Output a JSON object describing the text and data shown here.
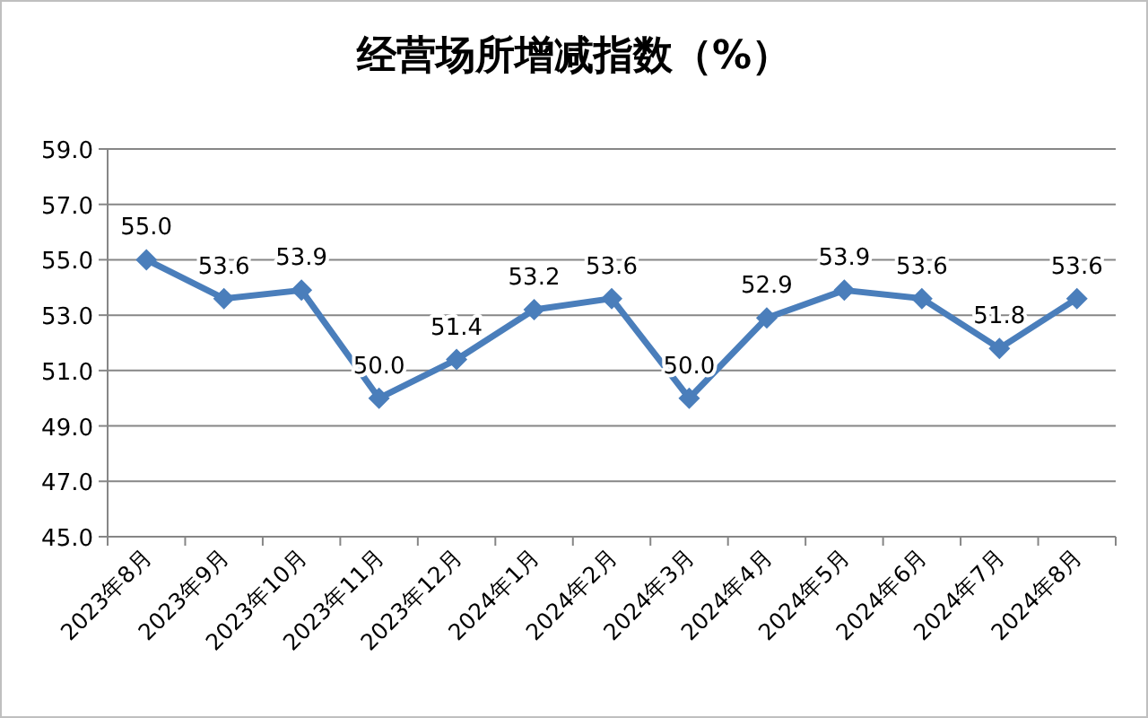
{
  "chart_data": {
    "type": "line",
    "title": "经营场所增减指数（%）",
    "categories": [
      "2023年8月",
      "2023年9月",
      "2023年10月",
      "2023年11月",
      "2023年12月",
      "2024年1月",
      "2024年2月",
      "2024年3月",
      "2024年4月",
      "2024年5月",
      "2024年6月",
      "2024年7月",
      "2024年8月"
    ],
    "series": [
      {
        "color": "#4a7ebb",
        "values": [
          55.0,
          53.6,
          53.9,
          50.0,
          51.4,
          53.2,
          53.6,
          50.0,
          52.9,
          53.9,
          53.6,
          51.8,
          53.6
        ],
        "value_labels": [
          "55.0",
          "53.6",
          "53.9",
          "50.0",
          "51.4",
          "53.2",
          "53.6",
          "50.0",
          "52.9",
          "53.9",
          "53.6",
          "51.8",
          "53.6"
        ]
      }
    ],
    "ylim": [
      45,
      59
    ],
    "yticks": [
      {
        "value": 45,
        "label": "45.0"
      },
      {
        "value": 47,
        "label": "47.0"
      },
      {
        "value": 49,
        "label": "49.0"
      },
      {
        "value": 51,
        "label": "51.0"
      },
      {
        "value": 53,
        "label": "53.0"
      },
      {
        "value": 55,
        "label": "55.0"
      },
      {
        "value": 57,
        "label": "57.0"
      },
      {
        "value": 59,
        "label": "59.0"
      }
    ],
    "grid": "y",
    "marker": "diamond"
  }
}
